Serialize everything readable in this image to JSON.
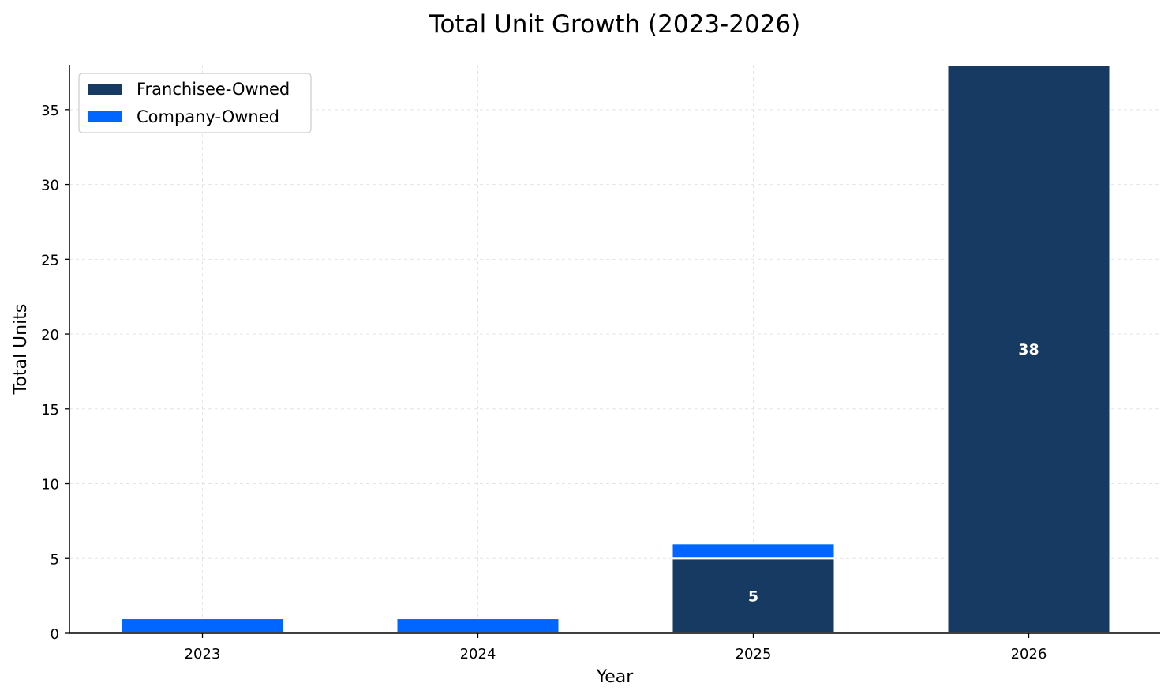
{
  "chart_data": {
    "type": "bar",
    "stacked": true,
    "title": "Total Unit Growth (2023-2026)",
    "xlabel": "Year",
    "ylabel": "Total Units",
    "categories": [
      "2023",
      "2024",
      "2025",
      "2026"
    ],
    "series": [
      {
        "name": "Franchisee-Owned",
        "values": [
          0,
          0,
          5,
          38
        ],
        "color": "#163a61"
      },
      {
        "name": "Company-Owned",
        "values": [
          1,
          1,
          1,
          0
        ],
        "color": "#0066ff"
      }
    ],
    "data_labels": [
      "",
      "",
      "5",
      "38"
    ],
    "ylim": [
      0,
      38
    ],
    "yticks": [
      0,
      5,
      10,
      15,
      20,
      25,
      30,
      35
    ],
    "grid": true,
    "legend_position": "top-left"
  }
}
